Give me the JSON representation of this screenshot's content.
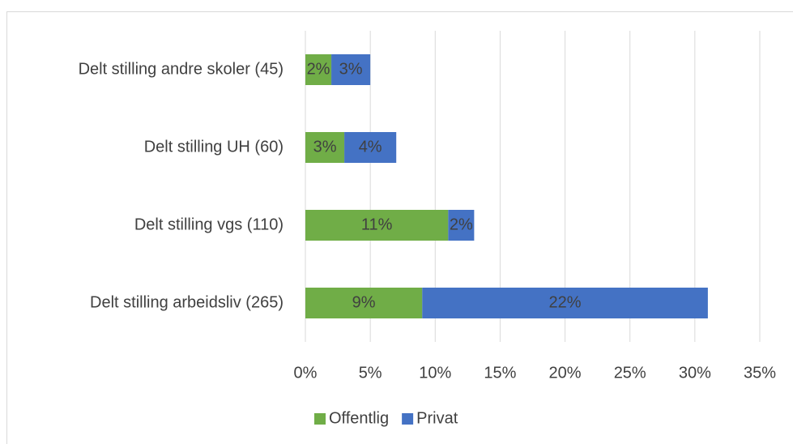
{
  "chart_data": {
    "type": "stacked-bar-horizontal",
    "categories": [
      "Delt stilling andre skoler (45)",
      "Delt stilling UH (60)",
      "Delt stilling vgs (110)",
      "Delt stilling arbeidsliv (265)"
    ],
    "series": [
      {
        "name": "Offentlig",
        "color": "#70ad47",
        "values": [
          2,
          3,
          11,
          9
        ],
        "value_labels": [
          "2%",
          "3%",
          "11%",
          "9%"
        ]
      },
      {
        "name": "Privat",
        "color": "#4472c4",
        "values": [
          3,
          4,
          2,
          22
        ],
        "value_labels": [
          "3%",
          "4%",
          "2%",
          "22%"
        ]
      }
    ],
    "xlim": [
      0,
      35
    ],
    "xticks": [
      {
        "value": 0,
        "label": "0%"
      },
      {
        "value": 5,
        "label": "5%"
      },
      {
        "value": 10,
        "label": "10%"
      },
      {
        "value": 15,
        "label": "15%"
      },
      {
        "value": 20,
        "label": "20%"
      },
      {
        "value": 25,
        "label": "25%"
      },
      {
        "value": 30,
        "label": "30%"
      },
      {
        "value": 35,
        "label": "35%"
      }
    ],
    "grid": true,
    "legend": "bottom"
  }
}
